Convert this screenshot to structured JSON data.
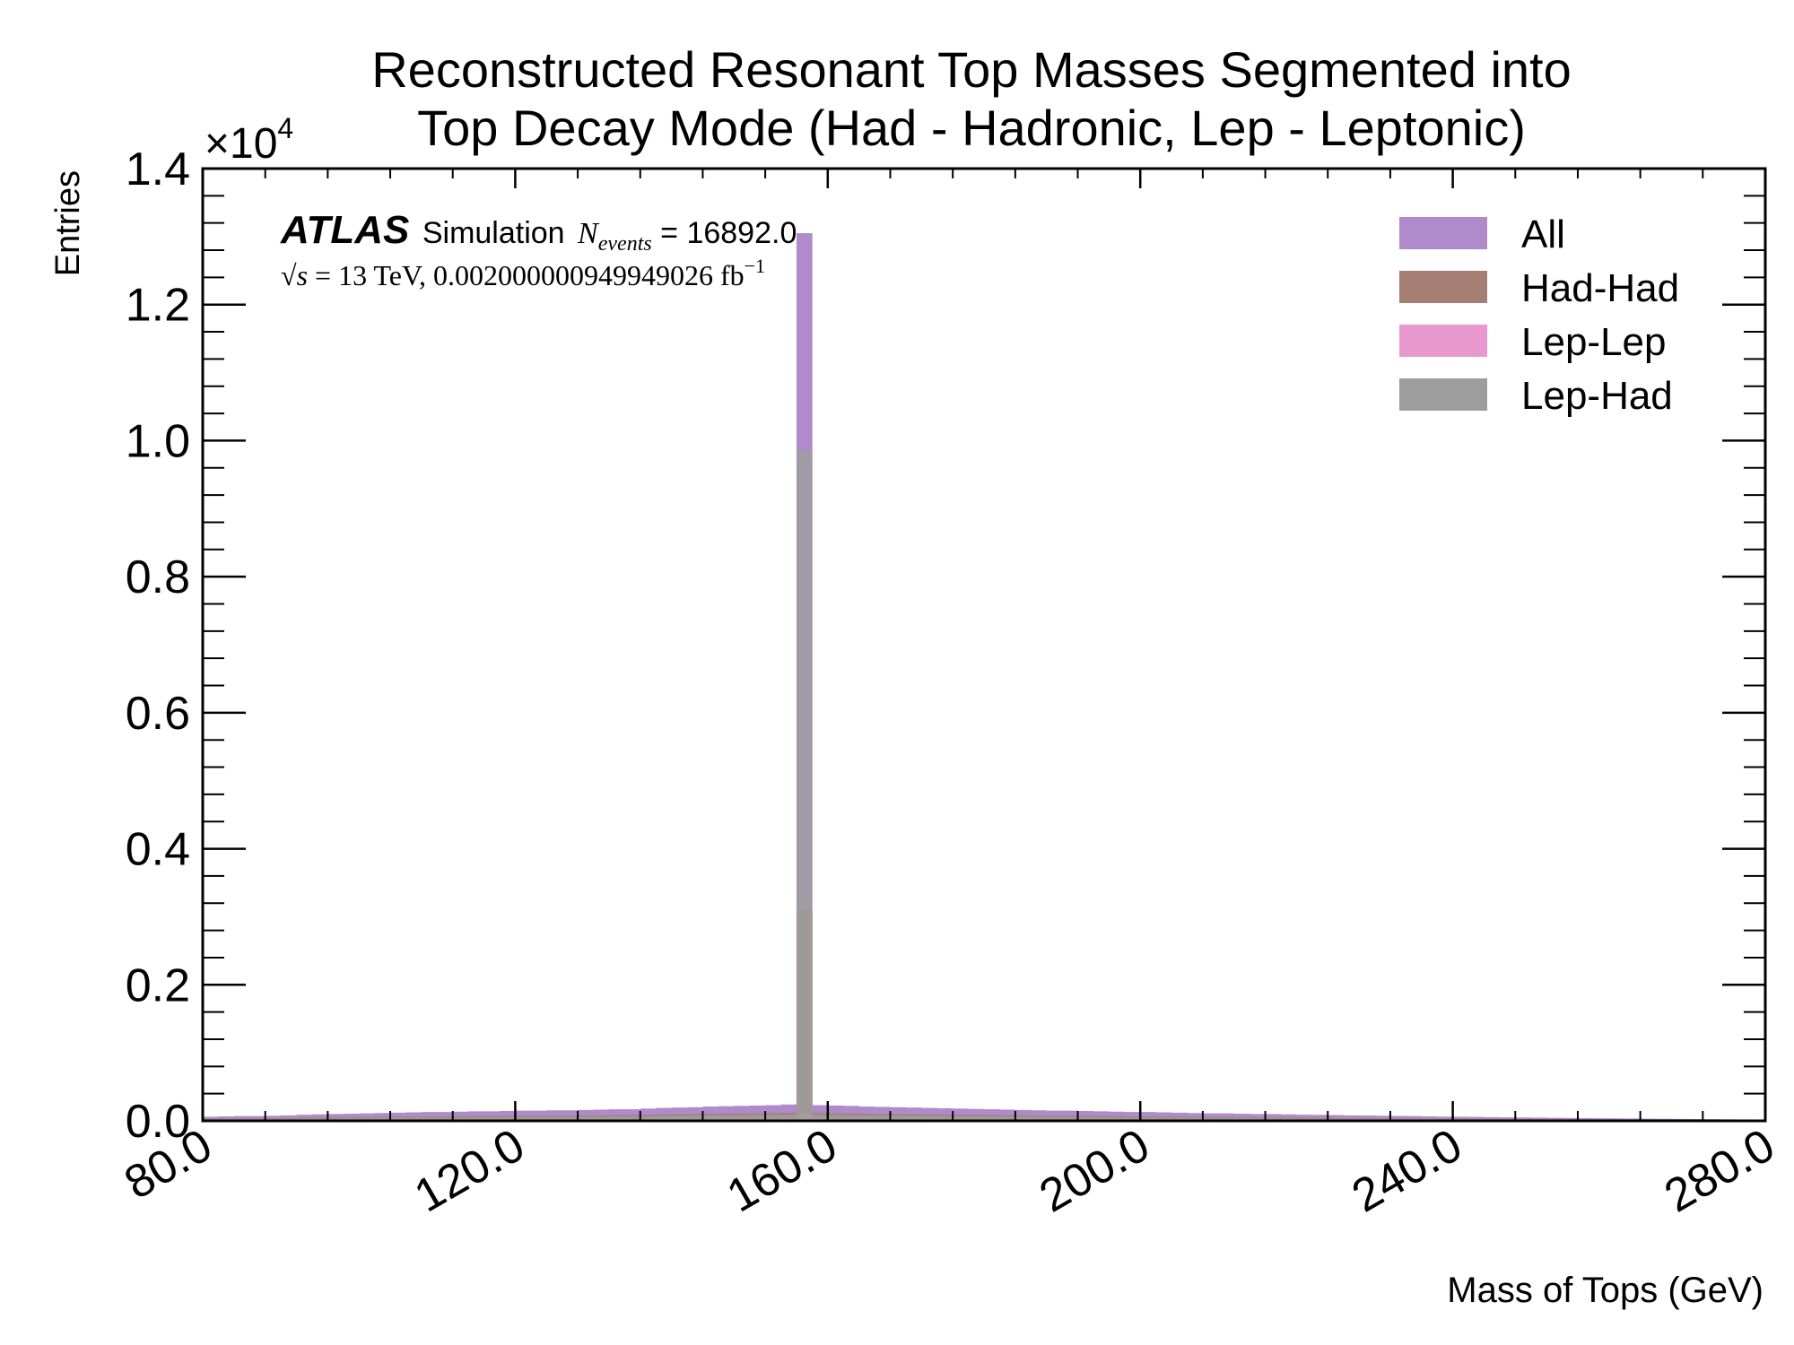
{
  "chart_data": {
    "type": "bar",
    "title_lines": [
      "Reconstructed Resonant Top Masses Segmented into",
      "Top Decay Mode (Had - Hadronic, Lep - Leptonic)"
    ],
    "xlabel": "Mass of Tops (GeV)",
    "ylabel": "Entries",
    "y_multiplier": "×10",
    "y_multiplier_exponent": "4",
    "xlim": [
      80,
      280
    ],
    "ylim": [
      0,
      14000
    ],
    "x_ticks": [
      80,
      120,
      160,
      200,
      240,
      280
    ],
    "x_tick_labels": [
      "80.0",
      "120.0",
      "160.0",
      "200.0",
      "240.0",
      "280.0"
    ],
    "y_ticks": [
      0,
      2000,
      4000,
      6000,
      8000,
      10000,
      12000,
      14000
    ],
    "y_tick_labels": [
      "0.0",
      "0.2",
      "0.4",
      "0.6",
      "0.8",
      "1.0",
      "1.2",
      "1.4"
    ],
    "annotation": {
      "experiment": "ATLAS",
      "label": "Simulation",
      "n_symbol": "N",
      "n_subscript": "events",
      "n_value": " = 16892.0",
      "energy_prefix": "√",
      "energy_s": "s",
      "energy_text": " = 13 TeV, 0.002000000949949026 fb",
      "lumi_exponent": "−1"
    },
    "legend_position": "top-right",
    "bin_width": 2,
    "bin_start": 80,
    "series": [
      {
        "name": "All",
        "color": "#AF8BCB",
        "values": [
          60,
          65,
          70,
          70,
          75,
          80,
          90,
          95,
          100,
          105,
          110,
          115,
          120,
          125,
          130,
          130,
          135,
          140,
          140,
          145,
          150,
          150,
          155,
          155,
          160,
          165,
          170,
          170,
          180,
          190,
          195,
          200,
          210,
          215,
          220,
          225,
          230,
          240,
          13050,
          230,
          225,
          220,
          210,
          205,
          200,
          195,
          190,
          185,
          180,
          175,
          170,
          165,
          160,
          155,
          150,
          150,
          145,
          140,
          135,
          130,
          130,
          125,
          120,
          115,
          110,
          110,
          105,
          100,
          100,
          95,
          90,
          88,
          85,
          80,
          78,
          75,
          72,
          70,
          65,
          62,
          60,
          58,
          55,
          52,
          50,
          48,
          45,
          43,
          40,
          38,
          36,
          34,
          32,
          30,
          28,
          26,
          24,
          22,
          20,
          18
        ]
      },
      {
        "name": "Had-Had",
        "color": "#A67F74",
        "values": [
          30,
          32,
          35,
          35,
          38,
          40,
          45,
          48,
          50,
          52,
          55,
          58,
          60,
          62,
          65,
          65,
          68,
          70,
          70,
          72,
          75,
          75,
          78,
          78,
          80,
          82,
          85,
          85,
          90,
          95,
          98,
          100,
          105,
          108,
          110,
          112,
          115,
          120,
          3100,
          115,
          112,
          110,
          105,
          102,
          100,
          98,
          95,
          92,
          90,
          88,
          85,
          82,
          80,
          78,
          75,
          75,
          72,
          70,
          68,
          65,
          65,
          62,
          60,
          58,
          55,
          55,
          52,
          50,
          50,
          48,
          45,
          44,
          42,
          40,
          39,
          38,
          36,
          35,
          32,
          31,
          30,
          29,
          28,
          26,
          25,
          24,
          22,
          21,
          20,
          19,
          18,
          17,
          16,
          15,
          14,
          13,
          12,
          11,
          10,
          9
        ]
      },
      {
        "name": "Lep-Lep",
        "color": "#EA99D0",
        "values": [
          8,
          8,
          9,
          9,
          10,
          10,
          11,
          12,
          12,
          13,
          13,
          14,
          15,
          15,
          16,
          16,
          17,
          17,
          18,
          18,
          19,
          19,
          20,
          20,
          20,
          21,
          21,
          22,
          22,
          23,
          24,
          25,
          26,
          27,
          28,
          28,
          29,
          30,
          100,
          29,
          28,
          28,
          27,
          26,
          25,
          24,
          24,
          23,
          22,
          22,
          21,
          20,
          20,
          19,
          19,
          18,
          18,
          17,
          17,
          16,
          16,
          15,
          15,
          14,
          14,
          13,
          13,
          12,
          12,
          12,
          11,
          11,
          10,
          10,
          10,
          9,
          9,
          9,
          8,
          8,
          8,
          7,
          7,
          7,
          6,
          6,
          6,
          5,
          5,
          5,
          5,
          4,
          4,
          4,
          4,
          3,
          3,
          3,
          3,
          2
        ]
      },
      {
        "name": "Lep-Had",
        "color": "#9D9D9D",
        "values": [
          22,
          25,
          26,
          26,
          27,
          30,
          34,
          35,
          38,
          40,
          42,
          43,
          45,
          48,
          49,
          49,
          50,
          53,
          52,
          55,
          56,
          56,
          57,
          57,
          60,
          62,
          64,
          63,
          68,
          72,
          73,
          75,
          79,
          80,
          82,
          85,
          86,
          90,
          9850,
          86,
          85,
          82,
          78,
          77,
          75,
          73,
          71,
          70,
          68,
          65,
          64,
          63,
          60,
          58,
          56,
          57,
          55,
          53,
          50,
          49,
          49,
          48,
          45,
          43,
          41,
          42,
          40,
          38,
          38,
          35,
          34,
          33,
          33,
          30,
          29,
          28,
          27,
          26,
          25,
          23,
          22,
          22,
          20,
          19,
          19,
          18,
          17,
          17,
          15,
          14,
          13,
          13,
          12,
          11,
          10,
          10,
          9,
          8,
          7,
          7
        ]
      }
    ]
  }
}
